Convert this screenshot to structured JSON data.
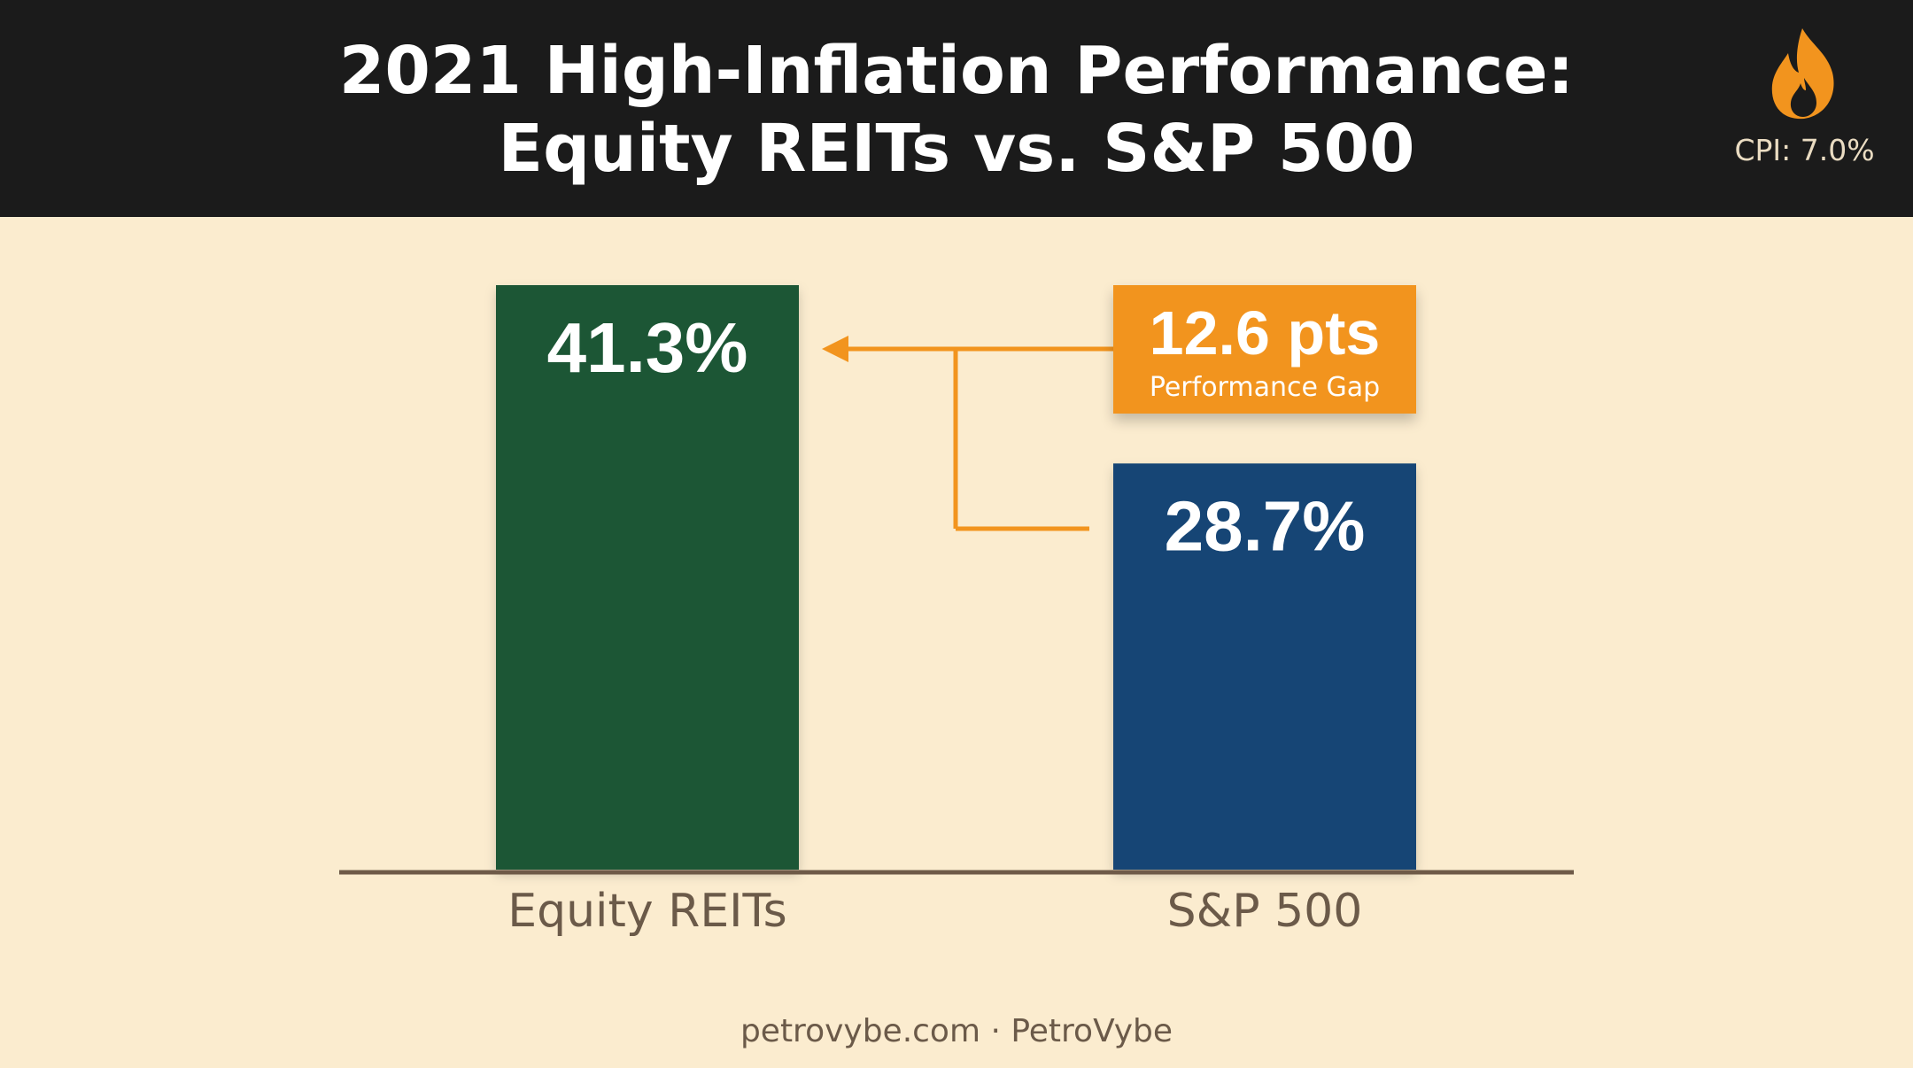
{
  "header": {
    "title_line1": "2021 High-Inflation Performance:",
    "title_line2": "Equity REITs vs. S&P 500",
    "cpi_label": "CPI: 7.0%",
    "cpi_icon": "flame-icon"
  },
  "chart_data": {
    "type": "bar",
    "title": "2021 High-Inflation Performance: Equity REITs vs. S&P 500",
    "categories": [
      "Equity REITs",
      "S&P 500"
    ],
    "values": [
      41.3,
      28.7
    ],
    "value_labels": [
      "41.3%",
      "28.7%"
    ],
    "colors": [
      "#1f5634",
      "#124574"
    ],
    "ylim": [
      0,
      41.3
    ],
    "grid": false,
    "annotation": {
      "value": "12.6 pts",
      "label": "Performance Gap",
      "color": "#f2941e"
    }
  },
  "footer": {
    "credit": "petrovybe.com · PetroVybe"
  }
}
